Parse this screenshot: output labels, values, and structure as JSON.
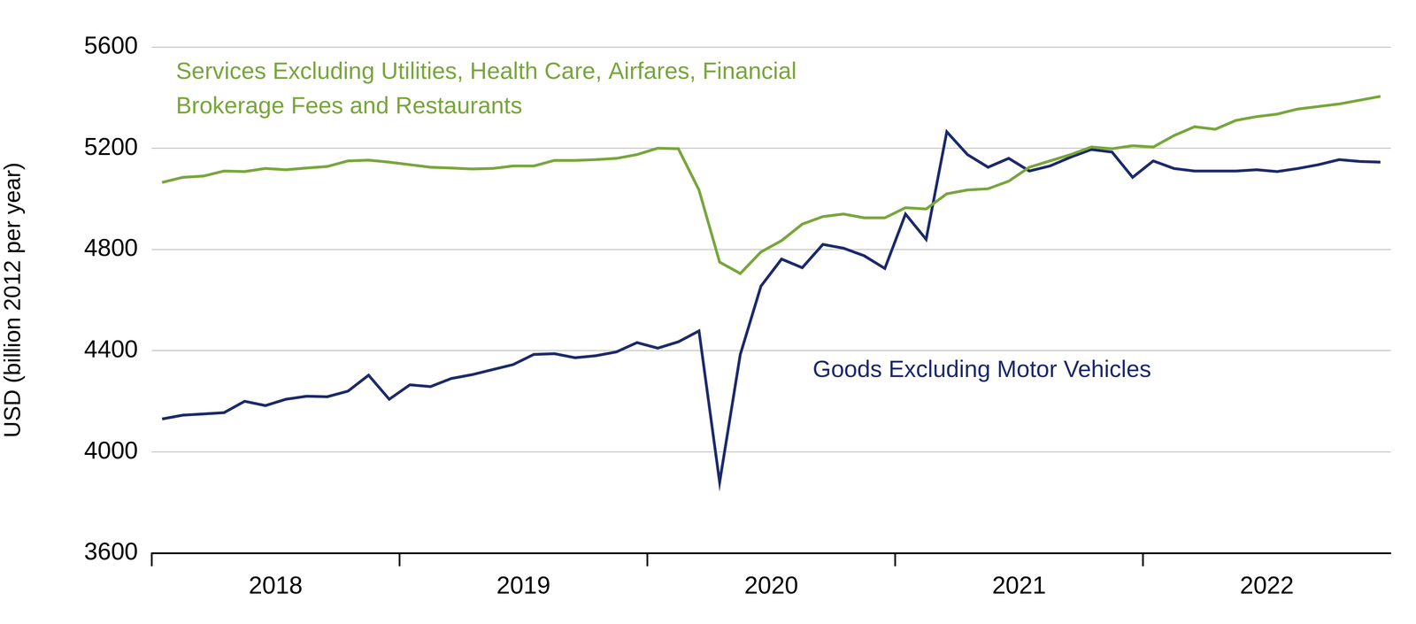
{
  "chart_data": {
    "type": "line",
    "categories": [
      null,
      null,
      null,
      null,
      null,
      "2018",
      null,
      null,
      null,
      null,
      null,
      null,
      null,
      null,
      null,
      null,
      null,
      "2019",
      null,
      null,
      null,
      null,
      null,
      null,
      null,
      null,
      null,
      null,
      null,
      "2020",
      null,
      null,
      null,
      null,
      null,
      null,
      null,
      null,
      null,
      null,
      null,
      "2021",
      null,
      null,
      null,
      null,
      null,
      null,
      null,
      null,
      null,
      null,
      null,
      "2022",
      null,
      null,
      null,
      null,
      null,
      null
    ],
    "series": [
      {
        "name": "Services Excluding Utilities, Health Care, Airfares, Financial Brokerage Fees and Restaurants",
        "color": "#78a63c",
        "values": [
          5065,
          5085,
          5090,
          5110,
          5108,
          5120,
          5115,
          5122,
          5128,
          5150,
          5153,
          5145,
          5135,
          5125,
          5122,
          5118,
          5120,
          5130,
          5130,
          5152,
          5152,
          5155,
          5160,
          5175,
          5200,
          5198,
          5035,
          4750,
          4705,
          4790,
          4835,
          4900,
          4930,
          4940,
          4925,
          4925,
          4965,
          4960,
          5020,
          5035,
          5040,
          5070,
          5125,
          5150,
          5175,
          5205,
          5198,
          5210,
          5205,
          5250,
          5285,
          5275,
          5310,
          5325,
          5335,
          5355,
          5365,
          5375,
          5390,
          5405
        ]
      },
      {
        "name": "Goods Excluding Motor Vehicles",
        "color": "#1c2a6b",
        "values": [
          4130,
          4145,
          4150,
          4155,
          4200,
          4183,
          4208,
          4220,
          4218,
          4240,
          4303,
          4208,
          4265,
          4258,
          4290,
          4305,
          4325,
          4345,
          4385,
          4388,
          4372,
          4380,
          4395,
          4432,
          4410,
          4435,
          4478,
          3880,
          4385,
          4655,
          4762,
          4728,
          4820,
          4805,
          4775,
          4725,
          4940,
          4840,
          5265,
          5175,
          5125,
          5160,
          5110,
          5130,
          5165,
          5195,
          5185,
          5085,
          5150,
          5120,
          5110,
          5110,
          5110,
          5115,
          5108,
          5120,
          5135,
          5155,
          5148,
          5145
        ]
      }
    ],
    "y_label": "USD (billion 2012 per year)",
    "ylim": [
      3600,
      5600
    ],
    "yticks": [
      3600,
      4000,
      4400,
      4800,
      5200,
      5600
    ],
    "grid": true
  }
}
